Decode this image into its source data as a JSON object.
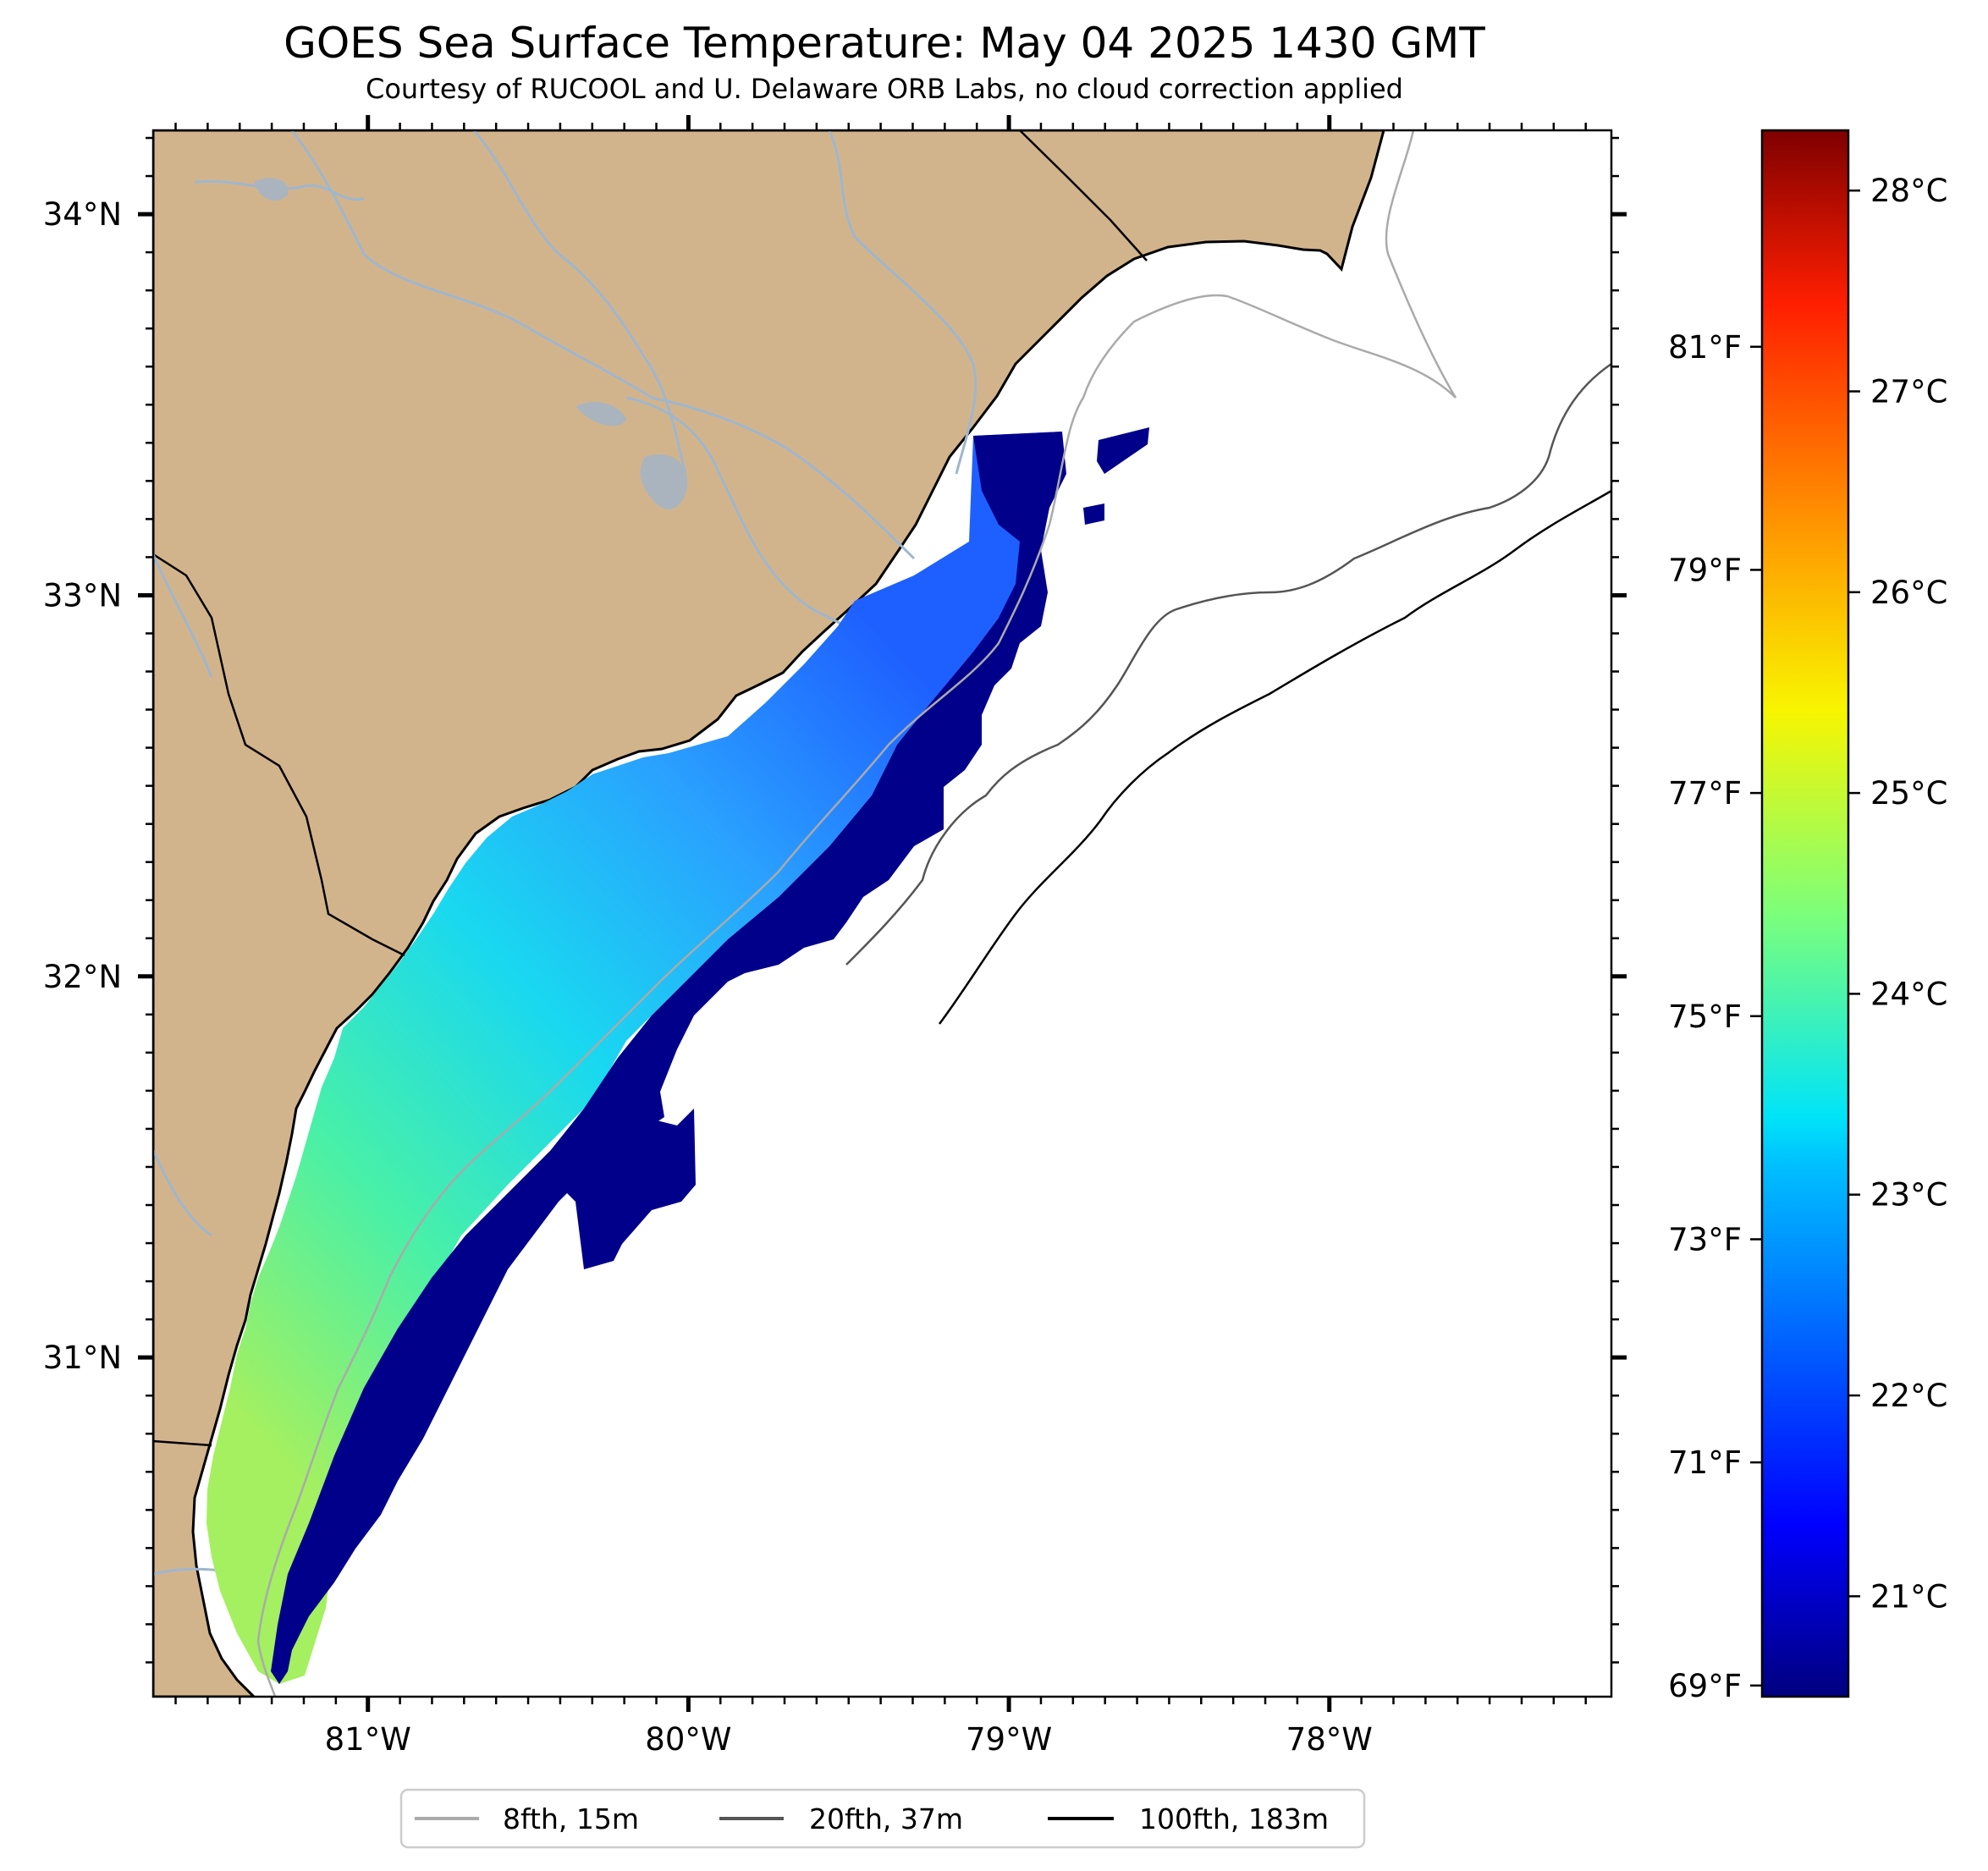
{
  "title": "GOES Sea Surface Temperature: May 04 2025 1430 GMT",
  "subtitle": "Courtesy of RUCOOL and U. Delaware ORB Labs, no cloud correction applied",
  "map": {
    "extent": {
      "lon": [
        -81.67,
        -77.12
      ],
      "lat": [
        30.11,
        34.22
      ]
    },
    "land_color": "#d2b48c",
    "water_color": "#ffffff",
    "river_color": "#9fb6cd",
    "longitude_labels": [
      {
        "lon": -81,
        "label": "81°W"
      },
      {
        "lon": -80,
        "label": "80°W"
      },
      {
        "lon": -79,
        "label": "79°W"
      },
      {
        "lon": -78,
        "label": "78°W"
      }
    ],
    "latitude_labels": [
      {
        "lat": 34,
        "label": "34°N"
      },
      {
        "lat": 33,
        "label": "33°N"
      },
      {
        "lat": 32,
        "label": "32°N"
      },
      {
        "lat": 31,
        "label": "31°N"
      }
    ]
  },
  "colorbar": {
    "colormap": "jet",
    "range_c": [
      20.5,
      28.3
    ],
    "celsius_labels": [
      {
        "value": 28,
        "label": "28°C"
      },
      {
        "value": 27,
        "label": "27°C"
      },
      {
        "value": 26,
        "label": "26°C"
      },
      {
        "value": 25,
        "label": "25°C"
      },
      {
        "value": 24,
        "label": "24°C"
      },
      {
        "value": 23,
        "label": "23°C"
      },
      {
        "value": 22,
        "label": "22°C"
      },
      {
        "value": 21,
        "label": "21°C"
      }
    ],
    "fahrenheit_labels": [
      {
        "value": 81,
        "label": "81°F"
      },
      {
        "value": 79,
        "label": "79°F"
      },
      {
        "value": 77,
        "label": "77°F"
      },
      {
        "value": 75,
        "label": "75°F"
      },
      {
        "value": 73,
        "label": "73°F"
      },
      {
        "value": 71,
        "label": "71°F"
      },
      {
        "value": 69,
        "label": "69°F"
      }
    ]
  },
  "legend": {
    "items": [
      {
        "label": "8fth, 15m",
        "color": "#aaaaaa"
      },
      {
        "label": "20fth, 37m",
        "color": "#555555"
      },
      {
        "label": "100fth, 183m",
        "color": "#000000"
      }
    ]
  }
}
